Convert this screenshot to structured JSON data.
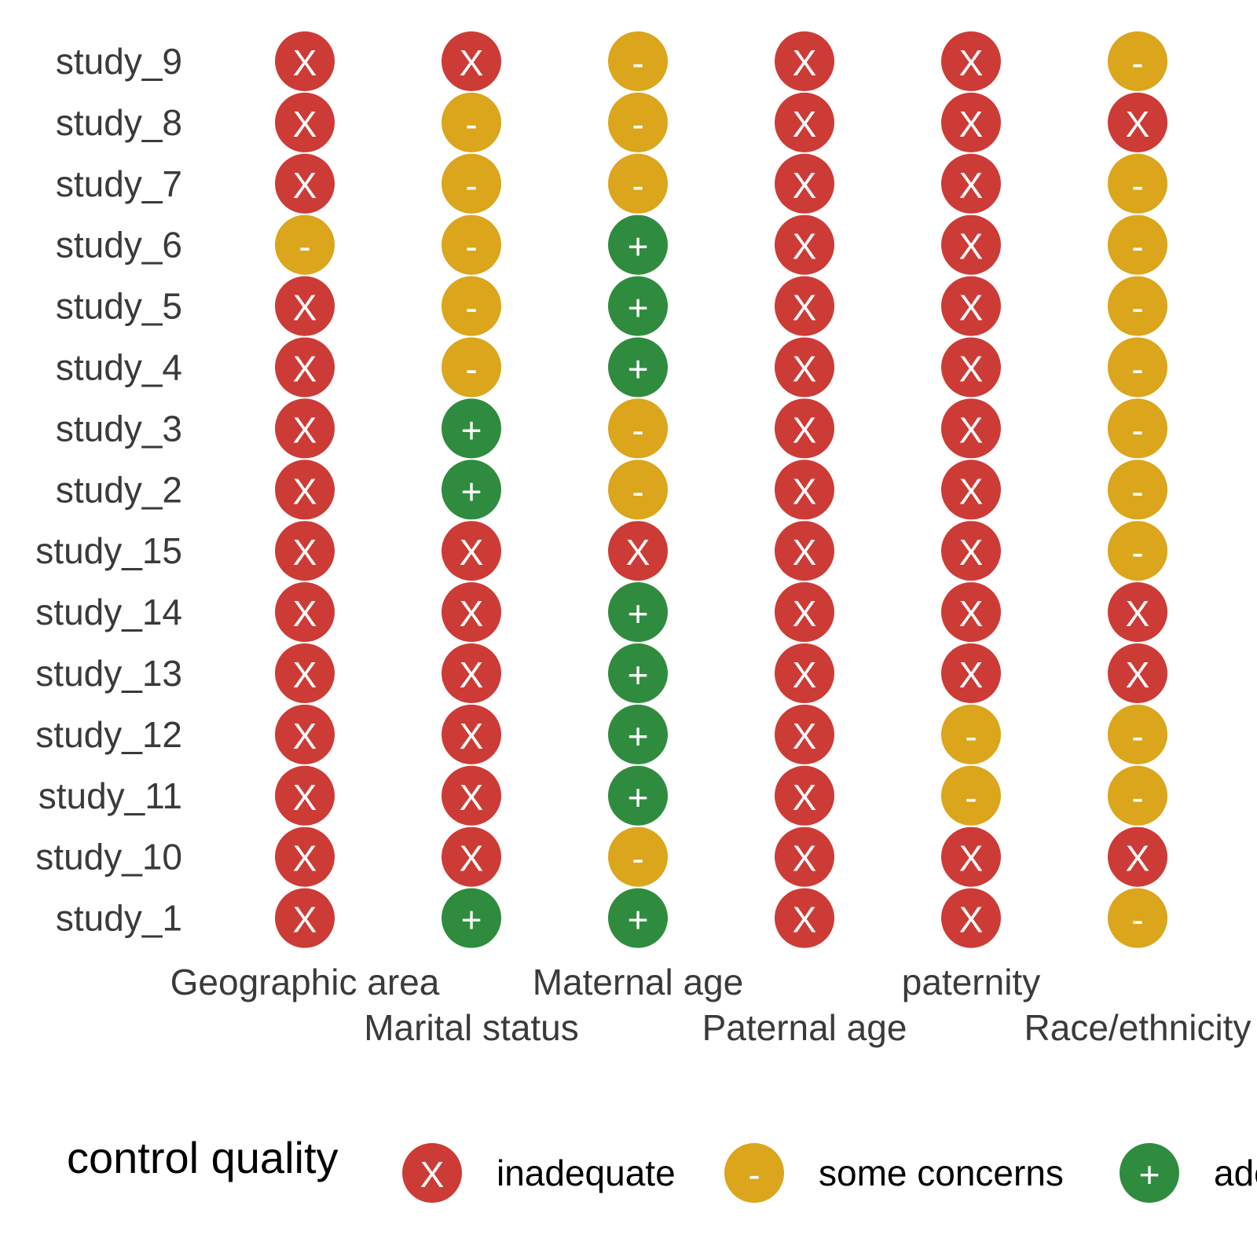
{
  "chart_data": {
    "type": "table",
    "title": "",
    "xlabel": "",
    "ylabel": "",
    "rows": [
      "study_9",
      "study_8",
      "study_7",
      "study_6",
      "study_5",
      "study_4",
      "study_3",
      "study_2",
      "study_15",
      "study_14",
      "study_13",
      "study_12",
      "study_11",
      "study_10",
      "study_1"
    ],
    "columns": [
      "Geographic area",
      "Marital status",
      "Maternal age",
      "Paternal age",
      "paternity",
      "Race/ethnicity"
    ],
    "values": [
      [
        "inadequate",
        "inadequate",
        "some concerns",
        "inadequate",
        "inadequate",
        "some concerns"
      ],
      [
        "inadequate",
        "some concerns",
        "some concerns",
        "inadequate",
        "inadequate",
        "inadequate"
      ],
      [
        "inadequate",
        "some concerns",
        "some concerns",
        "inadequate",
        "inadequate",
        "some concerns"
      ],
      [
        "some concerns",
        "some concerns",
        "adequate",
        "inadequate",
        "inadequate",
        "some concerns"
      ],
      [
        "inadequate",
        "some concerns",
        "adequate",
        "inadequate",
        "inadequate",
        "some concerns"
      ],
      [
        "inadequate",
        "some concerns",
        "adequate",
        "inadequate",
        "inadequate",
        "some concerns"
      ],
      [
        "inadequate",
        "adequate",
        "some concerns",
        "inadequate",
        "inadequate",
        "some concerns"
      ],
      [
        "inadequate",
        "adequate",
        "some concerns",
        "inadequate",
        "inadequate",
        "some concerns"
      ],
      [
        "inadequate",
        "inadequate",
        "inadequate",
        "inadequate",
        "inadequate",
        "some concerns"
      ],
      [
        "inadequate",
        "inadequate",
        "adequate",
        "inadequate",
        "inadequate",
        "inadequate"
      ],
      [
        "inadequate",
        "inadequate",
        "adequate",
        "inadequate",
        "inadequate",
        "inadequate"
      ],
      [
        "inadequate",
        "inadequate",
        "adequate",
        "inadequate",
        "some concerns",
        "some concerns"
      ],
      [
        "inadequate",
        "inadequate",
        "adequate",
        "inadequate",
        "some concerns",
        "some concerns"
      ],
      [
        "inadequate",
        "inadequate",
        "some concerns",
        "inadequate",
        "inadequate",
        "inadequate"
      ],
      [
        "inadequate",
        "adequate",
        "adequate",
        "inadequate",
        "inadequate",
        "some concerns"
      ]
    ],
    "legend": {
      "title": "control quality",
      "position": "bottom",
      "items": [
        {
          "key": "inadequate",
          "label": "inadequate",
          "symbol": "X",
          "color": "#cd3b36"
        },
        {
          "key": "some concerns",
          "label": "some concerns",
          "symbol": "-",
          "color": "#dba51c"
        },
        {
          "key": "adequate",
          "label": "adequate",
          "symbol": "+",
          "color": "#2f8c3e"
        }
      ]
    },
    "grid": false
  }
}
